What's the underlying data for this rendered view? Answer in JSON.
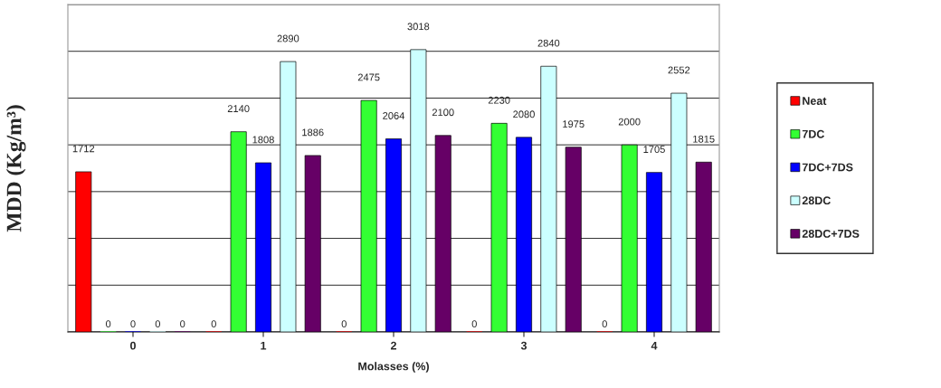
{
  "chart_data": {
    "type": "bar",
    "xlabel": "Molasses (%)",
    "ylabel": "MDD (Kg/m³)",
    "categories": [
      "0",
      "1",
      "2",
      "3",
      "4"
    ],
    "series": [
      {
        "name": "Neat",
        "color": "#ff0000",
        "values": [
          1712,
          0,
          0,
          0,
          0
        ]
      },
      {
        "name": "7DC",
        "color": "#33ff33",
        "values": [
          0,
          2140,
          2475,
          2230,
          2000
        ]
      },
      {
        "name": "7DC+7DS",
        "color": "#0000ff",
        "values": [
          0,
          1808,
          2064,
          2080,
          1705
        ]
      },
      {
        "name": "28DC",
        "color": "#ccffff",
        "values": [
          0,
          2890,
          3018,
          2840,
          2552
        ]
      },
      {
        "name": "28DC+7DS",
        "color": "#660066",
        "values": [
          0,
          1886,
          2100,
          1975,
          1815
        ]
      }
    ],
    "ylim": [
      0,
      3500
    ],
    "yticks": [
      {
        "value": 0,
        "label": null
      },
      {
        "value": 500,
        "label": null
      },
      {
        "value": 1000,
        "label": null
      },
      {
        "value": 1500,
        "label": null
      },
      {
        "value": 2000,
        "label": null
      },
      {
        "value": 2500,
        "label": null
      },
      {
        "value": 3000,
        "label": null
      },
      {
        "value": 3500,
        "label": null
      }
    ],
    "grid": "y",
    "legend": "right",
    "data_labels": true
  }
}
